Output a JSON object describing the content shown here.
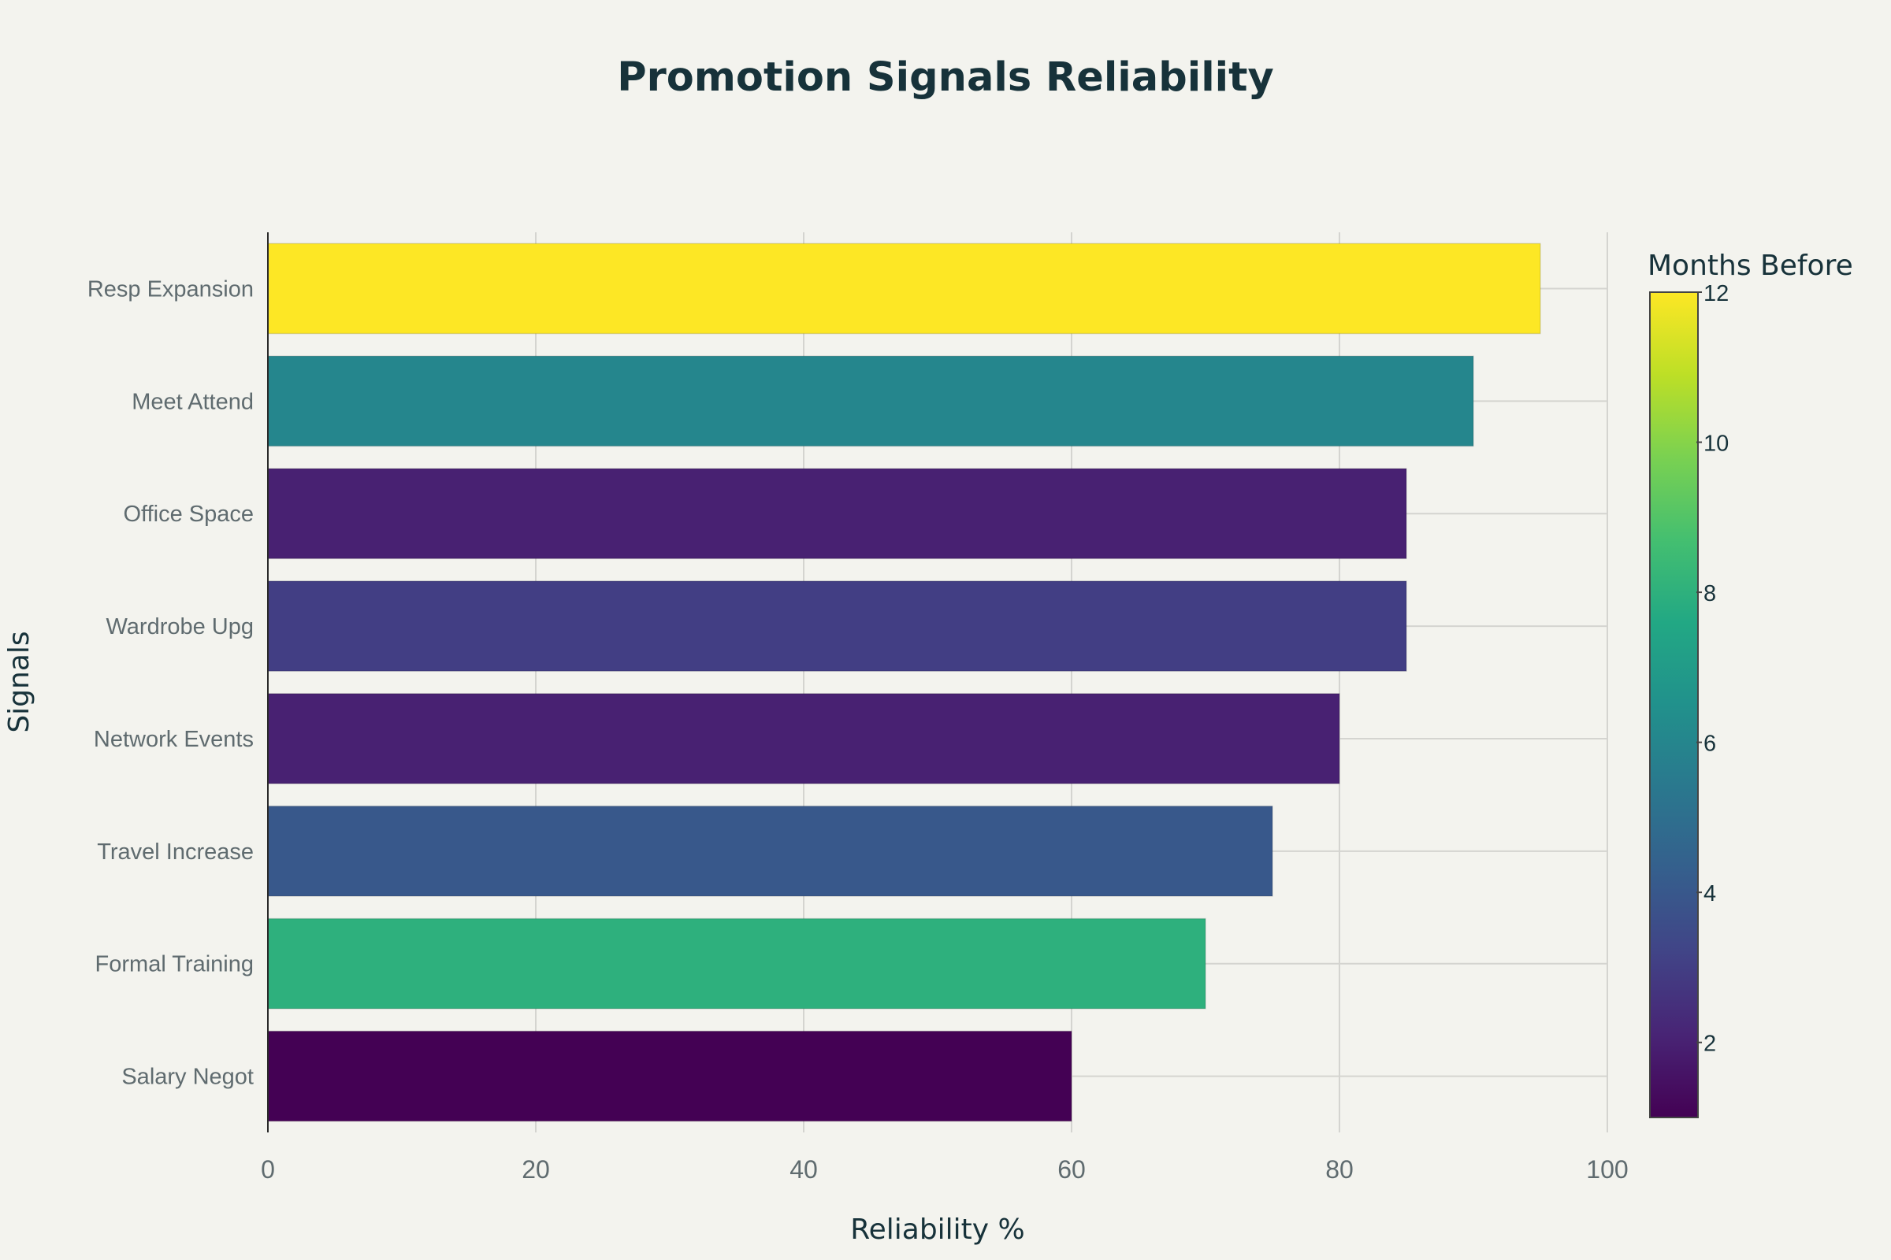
{
  "chart_data": {
    "type": "bar",
    "orientation": "horizontal",
    "title": "Promotion Signals Reliability",
    "xlabel": "Reliability %",
    "ylabel": "Signals",
    "xlim": [
      0,
      100
    ],
    "x_ticks": [
      0,
      20,
      40,
      60,
      80,
      100
    ],
    "grid": true,
    "categories": [
      "Resp Expansion",
      "Meet Attend",
      "Office Space",
      "Wardrobe Upg",
      "Network Events",
      "Travel Increase",
      "Formal Training",
      "Salary Negot"
    ],
    "series": [
      {
        "values": [
          95,
          90,
          85,
          85,
          80,
          75,
          70,
          60
        ]
      }
    ],
    "color_values": [
      12,
      6,
      2,
      3,
      2,
      4,
      8,
      1
    ],
    "colorbar": {
      "title": "Months Before",
      "colorscale": "viridis",
      "range": [
        1,
        12
      ],
      "ticks": [
        2,
        4,
        6,
        8,
        10,
        12
      ]
    }
  }
}
